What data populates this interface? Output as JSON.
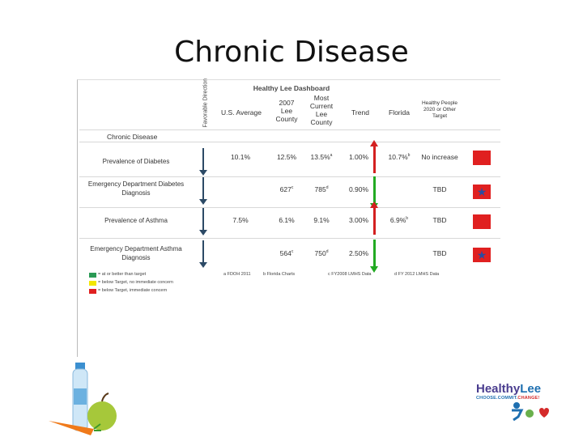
{
  "slide": {
    "title": "Chronic Disease"
  },
  "dashboard": {
    "title": "Healthy Lee Dashboard",
    "favorable_direction": "Favorable Direction",
    "columns": {
      "us": "U.S. Average",
      "lee2007": [
        "2007",
        "Lee",
        "County"
      ],
      "current": [
        "Most",
        "Current",
        "Lee",
        "County"
      ],
      "trend": "Trend",
      "florida": "Florida",
      "hp": [
        "Healthy People",
        "2020 or Other",
        "Target"
      ]
    },
    "section": "Chronic Disease",
    "rows": [
      {
        "label": [
          "Prevalence of Diabetes"
        ],
        "us": "10.1%",
        "lee2007": "12.5%",
        "lee2007_sup": "",
        "current": "13.5%",
        "current_sup": "a",
        "trend": "1.00%",
        "florida": "10.7%",
        "florida_sup": "b",
        "target": "No increase",
        "indicator": "red",
        "star": false,
        "trend_dir": "up"
      },
      {
        "label": [
          "Emergency Department Diabetes",
          "Diagnosis"
        ],
        "us": "",
        "lee2007": "627",
        "lee2007_sup": "c",
        "current": "785",
        "current_sup": "d",
        "trend": "0.90%",
        "florida": "",
        "florida_sup": "",
        "target": "TBD",
        "indicator": "blue",
        "star": true,
        "trend_dir": "down"
      },
      {
        "label": [
          "Prevalence of Asthma"
        ],
        "us": "7.5%",
        "lee2007": "6.1%",
        "lee2007_sup": "",
        "current": "9.1%",
        "current_sup": "",
        "trend": "3.00%",
        "florida": "6.9%",
        "florida_sup": "b",
        "target": "TBD",
        "indicator": "red",
        "star": false,
        "trend_dir": "up"
      },
      {
        "label": [
          "Emergency Department Asthma",
          "Diagnosis"
        ],
        "us": "",
        "lee2007": "564",
        "lee2007_sup": "c",
        "current": "750",
        "current_sup": "d",
        "trend": "2.50%",
        "florida": "",
        "florida_sup": "",
        "target": "TBD",
        "indicator": "blue",
        "star": true,
        "trend_dir": "down"
      }
    ],
    "legend": [
      {
        "color": "#2a9a55",
        "text": "= at or better than target"
      },
      {
        "color": "#f2e600",
        "text": "= below Target, no immediate concern"
      },
      {
        "color": "#e02020",
        "text": "= below Target, immediate concern"
      }
    ],
    "notes": [
      "a FDOH 2011",
      "b Florida Charts",
      "c FY2008 LMHS Data",
      "d FY 2012 LMHS Data"
    ]
  },
  "logo": {
    "name_a": "Healthy",
    "name_b": "Lee",
    "tag_a": "CHOOSE.",
    "tag_b": "COMMIT.",
    "tag_c": "CHANGE!"
  },
  "colors": {
    "red": "#e02020",
    "green_arrow": "#22aa22",
    "red_arrow": "#d32020",
    "star_blue": "#2a4ca0"
  }
}
